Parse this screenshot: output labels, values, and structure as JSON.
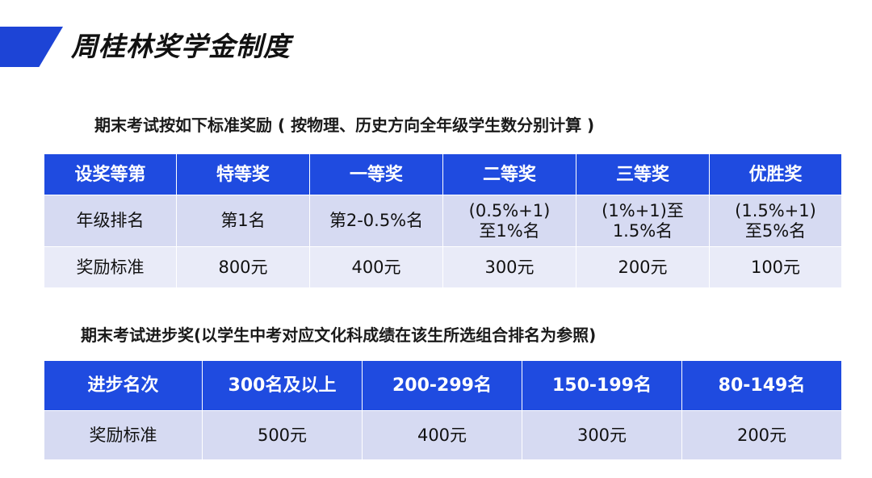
{
  "page": {
    "title": "周桂林奖学金制度"
  },
  "section1": {
    "heading": "期末考试按如下标准奖励 ( 按物理、历史方向全年级学生数分别计算 )",
    "header": [
      "设奖等第",
      "特等奖",
      "一等奖",
      "二等奖",
      "三等奖",
      "优胜奖"
    ],
    "rank_row": {
      "label": "年级排名",
      "cells": [
        [
          "第1名"
        ],
        [
          "第2-0.5%名"
        ],
        [
          "(0.5%+1)",
          "至1%名"
        ],
        [
          "(1%+1)至",
          "1.5%名"
        ],
        [
          "(1.5%+1)",
          "至5%名"
        ]
      ]
    },
    "reward_row": {
      "label": "奖励标准",
      "cells": [
        "800元",
        "400元",
        "300元",
        "200元",
        "100元"
      ]
    }
  },
  "section2": {
    "heading": "期末考试进步奖(以学生中考对应文化科成绩在该生所选组合排名为参照)",
    "header": [
      "进步名次",
      "300名及以上",
      "200-299名",
      "150-199名",
      "80-149名"
    ],
    "reward_row": {
      "label": "奖励标准",
      "cells": [
        "500元",
        "400元",
        "300元",
        "200元"
      ]
    }
  },
  "colors": {
    "accent": "#1d44d6",
    "header_bg": "#1f4be0",
    "row_bg": "#d6daf2",
    "row_bg_alt": "#e9ebf8"
  }
}
